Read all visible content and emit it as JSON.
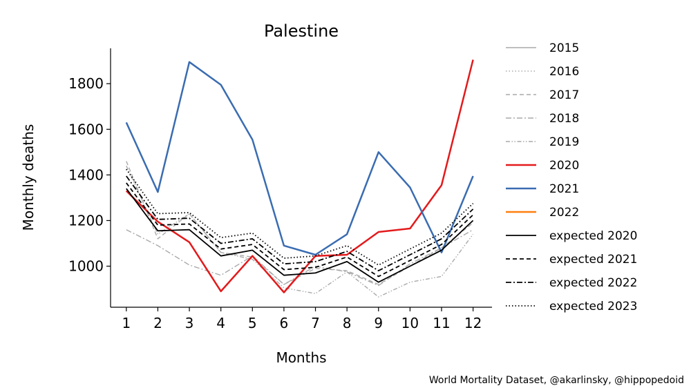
{
  "chart_data": {
    "type": "line",
    "title": "Palestine",
    "xlabel": "Months",
    "ylabel": "Monthly deaths",
    "categories": [
      1,
      2,
      3,
      4,
      5,
      6,
      7,
      8,
      9,
      10,
      11,
      12
    ],
    "xlim": [
      0.5,
      12.6
    ],
    "ylim": [
      820,
      1955
    ],
    "yticks": [
      1000,
      1200,
      1400,
      1600,
      1800
    ],
    "grid": false,
    "legend_position": "right",
    "series": [
      {
        "name": "2015",
        "color": "#a9a9a9",
        "dash": "solid",
        "width": 1.0,
        "values": [
          null,
          null,
          null,
          null,
          null,
          null,
          null,
          null,
          null,
          null,
          null,
          null
        ]
      },
      {
        "name": "2016",
        "color": "#a9a9a9",
        "dash": "dotted",
        "width": 1.0,
        "values": [
          null,
          null,
          null,
          null,
          null,
          null,
          null,
          null,
          null,
          null,
          null,
          null
        ]
      },
      {
        "name": "2017",
        "color": "#a9a9a9",
        "dash": "dashed",
        "width": 1.0,
        "values": [
          1460,
          1120,
          1230,
          1060,
          1040,
          920,
          990,
          980,
          920,
          1000,
          1080,
          1190
        ]
      },
      {
        "name": "2018",
        "color": "#a9a9a9",
        "dash": "dashdot",
        "width": 1.0,
        "values": [
          1160,
          1090,
          1005,
          960,
          1045,
          920,
          1000,
          975,
          915,
          1010,
          1080,
          1160
        ]
      },
      {
        "name": "2019",
        "color": "#a9a9a9",
        "dash": "dashdotdot",
        "width": 1.0,
        "values": [
          1440,
          1140,
          1230,
          1060,
          1030,
          905,
          880,
          975,
          865,
          930,
          955,
          1140
        ]
      },
      {
        "name": "2020",
        "color": "#e31a1c",
        "dash": "solid",
        "width": 1.8,
        "values": [
          1330,
          1195,
          1105,
          890,
          1045,
          885,
          1045,
          1050,
          1150,
          1165,
          1355,
          1905
        ]
      },
      {
        "name": "2021",
        "color": "#3a6cb1",
        "dash": "solid",
        "width": 1.8,
        "values": [
          1630,
          1325,
          1895,
          1795,
          1555,
          1090,
          1050,
          1140,
          1500,
          1345,
          1060,
          1395
        ]
      },
      {
        "name": "2022",
        "color": "#ff7f0e",
        "dash": "solid",
        "width": 1.8,
        "values": [
          null,
          null,
          null,
          null,
          null,
          null,
          null,
          null,
          null,
          null,
          null,
          null
        ]
      },
      {
        "name": "expected 2020",
        "color": "#000000",
        "dash": "solid",
        "width": 1.3,
        "values": [
          1340,
          1155,
          1160,
          1045,
          1070,
          960,
          970,
          1020,
          930,
          1000,
          1070,
          1200
        ]
      },
      {
        "name": "expected 2021",
        "color": "#000000",
        "dash": "dashed",
        "width": 1.3,
        "values": [
          1365,
          1180,
          1185,
          1075,
          1095,
          985,
          995,
          1040,
          955,
          1025,
          1095,
          1225
        ]
      },
      {
        "name": "expected 2022",
        "color": "#000000",
        "dash": "dashdot",
        "width": 1.3,
        "values": [
          1395,
          1205,
          1210,
          1100,
          1120,
          1010,
          1020,
          1065,
          980,
          1050,
          1120,
          1250
        ]
      },
      {
        "name": "expected 2023",
        "color": "#000000",
        "dash": "dotted",
        "width": 1.3,
        "values": [
          1425,
          1230,
          1235,
          1125,
          1145,
          1035,
          1045,
          1090,
          1005,
          1075,
          1145,
          1275
        ]
      }
    ],
    "source_note": "World Mortality Dataset, @akarlinsky, @hippopedoid"
  }
}
